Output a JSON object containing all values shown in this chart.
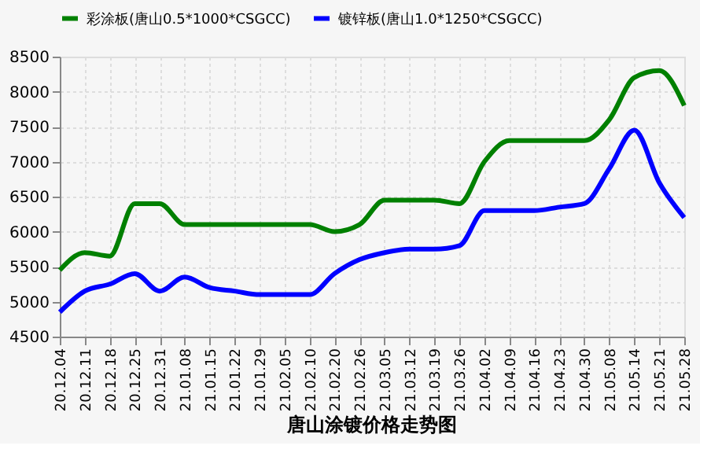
{
  "chart_data": {
    "type": "line",
    "title": "唐山涂镀价格走势图",
    "categories": [
      "20.12.04",
      "20.12.11",
      "20.12.18",
      "20.12.25",
      "20.12.31",
      "21.01.08",
      "21.01.15",
      "21.01.22",
      "21.01.29",
      "21.02.05",
      "21.02.10",
      "21.02.20",
      "21.02.26",
      "21.03.05",
      "21.03.12",
      "21.03.19",
      "21.03.26",
      "21.04.02",
      "21.04.09",
      "21.04.16",
      "21.04.23",
      "21.04.30",
      "21.05.08",
      "21.05.14",
      "21.05.21",
      "21.05.28"
    ],
    "series": [
      {
        "name": "彩涂板(唐山0.5*1000*CSGCC)",
        "color": "#008000",
        "values": [
          5450,
          5700,
          5650,
          6400,
          6400,
          6100,
          6100,
          6100,
          6100,
          6100,
          6100,
          6000,
          6100,
          6450,
          6450,
          6450,
          6400,
          7000,
          7300,
          7300,
          7300,
          7300,
          7600,
          8200,
          8300,
          7800
        ]
      },
      {
        "name": "镀锌板(唐山1.0*1250*CSGCC)",
        "color": "#0000ff",
        "values": [
          4850,
          5150,
          5250,
          5400,
          5150,
          5350,
          5200,
          5150,
          5100,
          5100,
          5100,
          5400,
          5600,
          5700,
          5750,
          5750,
          5800,
          6300,
          6300,
          6300,
          6350,
          6400,
          6900,
          7450,
          6700,
          6200
        ]
      }
    ],
    "ylim": [
      4500,
      8500
    ],
    "yticks": [
      4500,
      5000,
      5500,
      6000,
      6500,
      7000,
      7500,
      8000,
      8500
    ],
    "grid": true,
    "legend": "top",
    "marker": "none",
    "line_style": "solid"
  }
}
